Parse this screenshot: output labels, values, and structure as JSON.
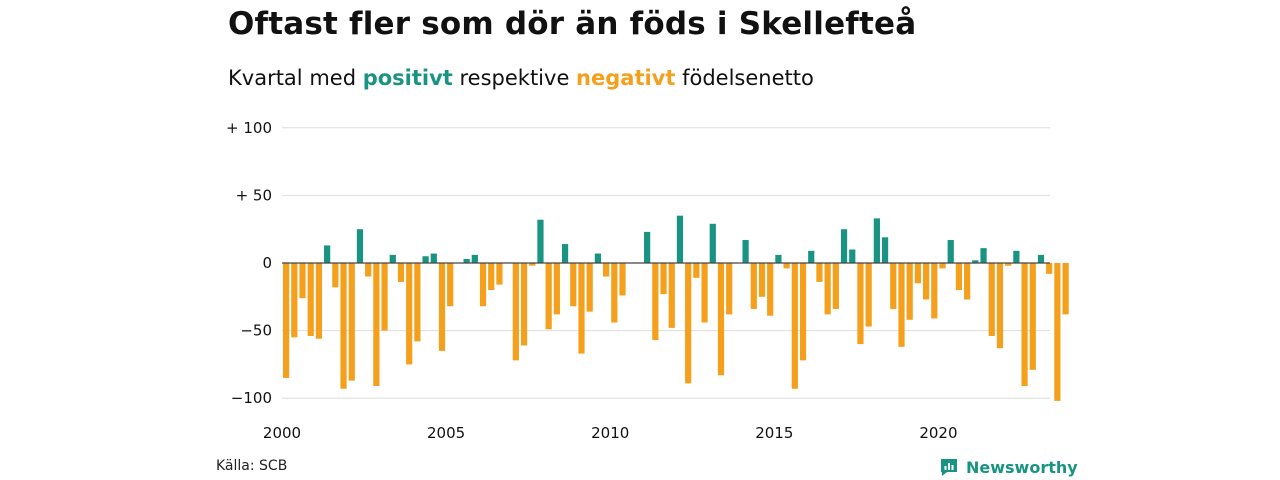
{
  "title": "Oftast fler som dör än föds i Skellefteå",
  "subtitle": {
    "before": "Kvartal med ",
    "positive_word": "positivt",
    "middle": " respektive ",
    "negative_word": "negativt",
    "after": " födelsenetto"
  },
  "source": "Källa: SCB",
  "brand": {
    "name": "Newsworthy",
    "icon": "newsworthy-logo-icon"
  },
  "colors": {
    "positive": "#1a9482",
    "negative": "#f5a01c",
    "grid": "#dddddd",
    "zero_line": "#444444",
    "brand": "#1a9482"
  },
  "chart_data": {
    "type": "bar",
    "ylim": [
      -105,
      100
    ],
    "yticks": [
      {
        "value": 100,
        "label": "+ 100"
      },
      {
        "value": 50,
        "label": "+  50"
      },
      {
        "value": 0,
        "label": "0"
      },
      {
        "value": -50,
        "label": "−50"
      },
      {
        "value": -100,
        "label": "−100"
      }
    ],
    "xlim": [
      2000.0,
      2023.4
    ],
    "xticks": [
      {
        "value": 2000,
        "label": "2000"
      },
      {
        "value": 2005,
        "label": "2005"
      },
      {
        "value": 2010,
        "label": "2010"
      },
      {
        "value": 2015,
        "label": "2015"
      },
      {
        "value": 2020,
        "label": "2020"
      }
    ],
    "start_period": "2000-Q1",
    "grid": true,
    "legend": "none",
    "values": [
      -85,
      -55,
      -26,
      -54,
      -56,
      13,
      -18,
      -93,
      -87,
      25,
      -10,
      -91,
      -50,
      6,
      -14,
      -75,
      -58,
      5,
      7,
      -65,
      -32,
      0,
      3,
      6,
      -32,
      -20,
      -16,
      0,
      -72,
      -61,
      -2,
      32,
      -49,
      -38,
      14,
      -32,
      -67,
      -36,
      7,
      -10,
      -44,
      -24,
      0,
      0,
      23,
      -57,
      -23,
      -48,
      35,
      -89,
      -11,
      -44,
      29,
      -83,
      -38,
      0,
      17,
      -34,
      -25,
      -39,
      6,
      -4,
      -93,
      -72,
      9,
      -14,
      -38,
      -34,
      25,
      10,
      -60,
      -47,
      33,
      19,
      -34,
      -62,
      -42,
      -15,
      -27,
      -41,
      -4,
      17,
      -20,
      -27,
      2,
      11,
      -54,
      -63,
      -2,
      9,
      -91,
      -79,
      6,
      -8,
      -102,
      -38
    ]
  }
}
